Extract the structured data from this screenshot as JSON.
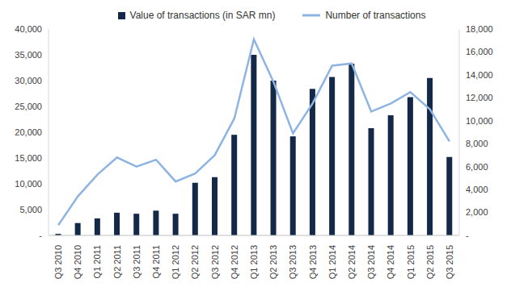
{
  "chart_data": {
    "type": "bar",
    "categories": [
      "Q3 2010",
      "Q4 2010",
      "Q1 2011",
      "Q2 2011",
      "Q3 2011",
      "Q4 2011",
      "Q1 2012",
      "Q2 2012",
      "Q3 2012",
      "Q4 2012",
      "Q1 2013",
      "Q2 2013",
      "Q3 2013",
      "Q4 2013",
      "Q1 2014",
      "Q2 2014",
      "Q3 2014",
      "Q4 2014",
      "Q1 2015",
      "Q2 2015",
      "Q3 2015"
    ],
    "series": [
      {
        "name": "Value of transactions (in SAR mn)",
        "type": "bar",
        "color": "#142847",
        "values": [
          300,
          2400,
          3300,
          4400,
          4200,
          4800,
          4200,
          10200,
          11300,
          19500,
          35000,
          30000,
          19200,
          28400,
          30700,
          33300,
          20800,
          23300,
          26800,
          30500,
          15200
        ]
      },
      {
        "name": "Number of transactions",
        "type": "line",
        "color": "#8eb4e3",
        "axis": "y2",
        "values": [
          900,
          3400,
          5300,
          6800,
          6000,
          6600,
          4700,
          5400,
          7000,
          10200,
          17100,
          13400,
          8900,
          11500,
          14800,
          15000,
          10800,
          11500,
          12500,
          11000,
          8200
        ]
      }
    ],
    "ylim": [
      0,
      40000
    ],
    "yticks": [
      {
        "value": 0,
        "label": "-"
      },
      {
        "value": 5000,
        "label": "5,000"
      },
      {
        "value": 10000,
        "label": "10,000"
      },
      {
        "value": 15000,
        "label": "15,000"
      },
      {
        "value": 20000,
        "label": "20,000"
      },
      {
        "value": 25000,
        "label": "25,000"
      },
      {
        "value": 30000,
        "label": "30,000"
      },
      {
        "value": 35000,
        "label": "35,000"
      },
      {
        "value": 40000,
        "label": "40,000"
      }
    ],
    "y2lim": [
      0,
      18000
    ],
    "y2ticks": [
      {
        "value": 0,
        "label": "-"
      },
      {
        "value": 2000,
        "label": "2,000"
      },
      {
        "value": 4000,
        "label": "4,000"
      },
      {
        "value": 6000,
        "label": "6,000"
      },
      {
        "value": 8000,
        "label": "8,000"
      },
      {
        "value": 10000,
        "label": "10,000"
      },
      {
        "value": 12000,
        "label": "12,000"
      },
      {
        "value": 14000,
        "label": "14,000"
      },
      {
        "value": 16000,
        "label": "16,000"
      },
      {
        "value": 18000,
        "label": "18,000"
      }
    ],
    "legend": "top",
    "grid": false
  }
}
